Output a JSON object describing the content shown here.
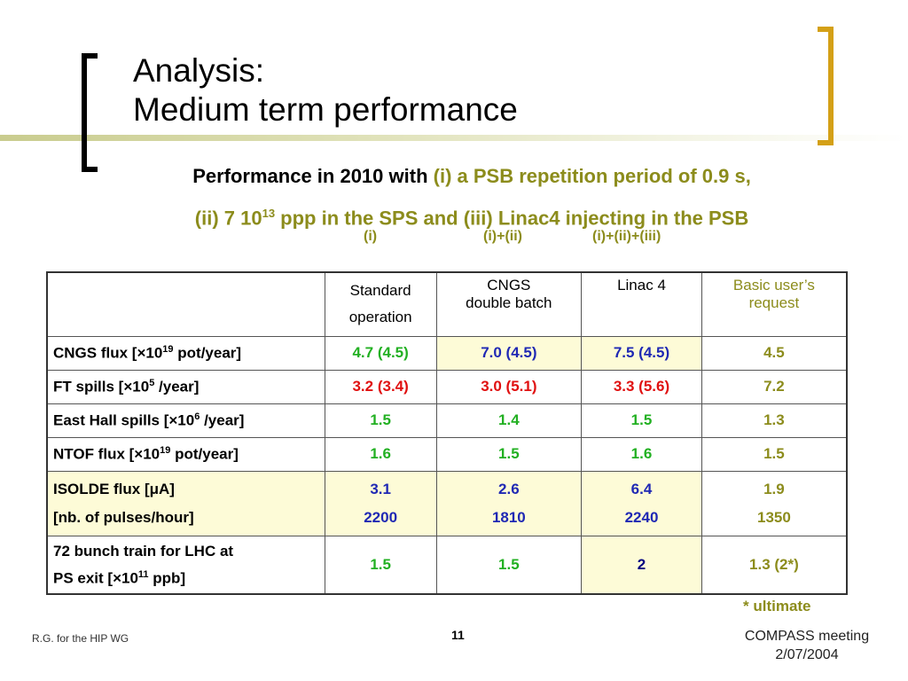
{
  "title": {
    "line1": "Analysis:",
    "line2": "Medium term performance"
  },
  "subtitle": {
    "black_part": "Performance in 2010 with",
    "item_i": "(i) a PSB repetition period of 0.9 s,",
    "item_ii_base": "(ii) 7 10",
    "item_ii_exp": "13",
    "item_ii_tail": " ppp in the SPS and (iii) Linac4 injecting in the PSB"
  },
  "scenario_labels": [
    "(i)",
    "(i)+(ii)",
    "(i)+(ii)+(iii)"
  ],
  "table": {
    "headers": {
      "standard": [
        "Standard",
        "operation"
      ],
      "cngs": [
        "CNGS",
        "double batch"
      ],
      "linac": "Linac 4",
      "basic": [
        "Basic user’s",
        "request"
      ]
    },
    "rows": [
      {
        "label_pre": "CNGS flux [×10",
        "label_exp": "19",
        "label_post": " pot/year]",
        "values": [
          "4.7 (4.5)",
          "7.0 (4.5)",
          "7.5 (4.5)",
          "4.5"
        ]
      },
      {
        "label_pre": "FT spills [×10",
        "label_exp": "5",
        "label_post": " /year]",
        "values": [
          "3.2 (3.4)",
          "3.0 (5.1)",
          "3.3 (5.6)",
          "7.2"
        ]
      },
      {
        "label_pre": "East Hall spills [×10",
        "label_exp": "6",
        "label_post": " /year]",
        "values": [
          "1.5",
          "1.4",
          "1.5",
          "1.3"
        ]
      },
      {
        "label_pre": "NTOF flux [×10",
        "label_exp": "19",
        "label_post": " pot/year]",
        "values": [
          "1.6",
          "1.5",
          "1.6",
          "1.5"
        ]
      },
      {
        "label_line1": "ISOLDE flux [μA]",
        "label_line2": "[nb. of pulses/hour]",
        "values_line1": [
          "3.1",
          "2.6",
          "6.4",
          "1.9"
        ],
        "values_line2": [
          "2200",
          "1810",
          "2240",
          "1350"
        ]
      },
      {
        "label_line1": "72 bunch train for LHC at",
        "label_pre": "PS exit [×10",
        "label_exp": "11",
        "label_post": " ppb]",
        "values": [
          "1.5",
          "1.5",
          "2",
          "1.3 (2*)"
        ]
      }
    ]
  },
  "footnote": "* ultimate",
  "footer": {
    "left": "R.G. for the HIP WG",
    "page": "11",
    "right_line1": "COMPASS meeting",
    "right_line2": "2/07/2004"
  },
  "colors": {
    "olive": "#8c8c1c",
    "bracket_gold": "#d4a017",
    "highlight": "#fdfbd7"
  }
}
